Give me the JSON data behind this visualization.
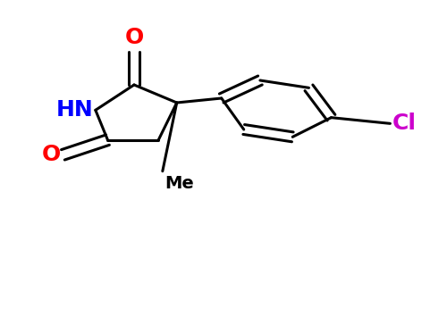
{
  "bg_color": "#ffffff",
  "bond_color": "#000000",
  "bond_width": 2.2,
  "atoms": {
    "N": {
      "label": "HN",
      "color": "#0000ff"
    },
    "O2": {
      "label": "O",
      "color": "#ff0000"
    },
    "O5": {
      "label": "O",
      "color": "#ff0000"
    },
    "Cl": {
      "label": "Cl",
      "color": "#cc00cc"
    }
  }
}
